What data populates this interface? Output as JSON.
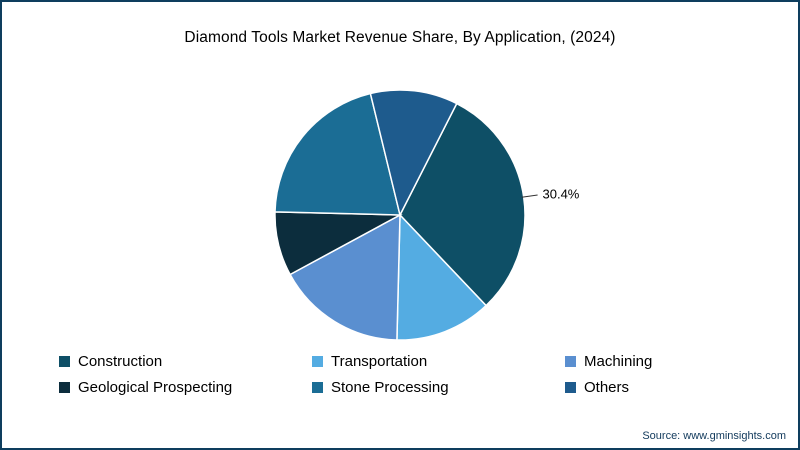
{
  "chart_data": {
    "type": "pie",
    "title": "Diamond Tools Market Revenue Share, By Application, (2024)",
    "labels": [
      "Construction",
      "Transportation",
      "Machining",
      "Geological Prospecting",
      "Stone Processing",
      "Others"
    ],
    "values": [
      30.4,
      12.5,
      16.7,
      8.3,
      20.8,
      11.3
    ],
    "colors": [
      "#0e4f66",
      "#54ace2",
      "#5a8fd0",
      "#0c2d3d",
      "#1b6d95",
      "#1e5b8d"
    ],
    "start_angle": 27,
    "legend_position": "bottom",
    "visible_labels": [
      {
        "slice": "Construction",
        "text": "30.4%"
      }
    ]
  },
  "frame": {
    "border_color": "#0e3e5e",
    "background": "#ffffff"
  },
  "source": {
    "text": "Source: www.gminsights.com"
  }
}
